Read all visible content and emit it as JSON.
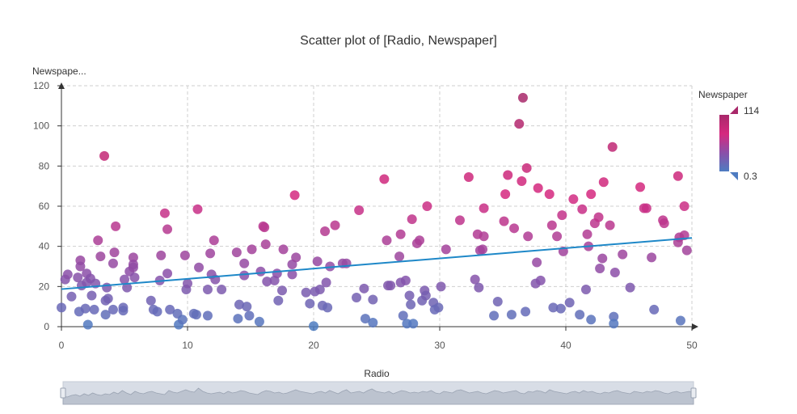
{
  "chart_data": {
    "type": "scatter",
    "title": "Scatter plot of [Radio, Newspaper]",
    "xlabel": "Radio",
    "ylabel": "Newspape...",
    "xlim": [
      0,
      50
    ],
    "ylim": [
      0,
      120
    ],
    "xticks": [
      "0",
      "10",
      "20",
      "30",
      "40",
      "50"
    ],
    "yticks": [
      "0",
      "20",
      "40",
      "60",
      "80",
      "100",
      "120"
    ],
    "grid": true,
    "color_scale": {
      "label": "Newspaper",
      "min_label": "0.3",
      "max_label": "114",
      "min": 0.3,
      "max": 114,
      "colors": [
        "#4e7cc1",
        "#8b4fa8",
        "#d6287f",
        "#a8286a"
      ]
    },
    "trendline": {
      "x": [
        0,
        50
      ],
      "y": [
        18.7,
        44.2
      ],
      "color": "#1e88c8"
    },
    "series": [
      {
        "points": [
          [
            0.0,
            9.5
          ],
          [
            0.3,
            23.5
          ],
          [
            0.5,
            26.0
          ],
          [
            0.8,
            15.0
          ],
          [
            1.3,
            24.5
          ],
          [
            1.4,
            7.5
          ],
          [
            1.5,
            33.0
          ],
          [
            1.5,
            30.0
          ],
          [
            1.6,
            20.5
          ],
          [
            1.9,
            9.0
          ],
          [
            2.0,
            22.0
          ],
          [
            2.0,
            26.5
          ],
          [
            2.1,
            1.0
          ],
          [
            2.3,
            24.0
          ],
          [
            2.4,
            15.5
          ],
          [
            2.6,
            8.5
          ],
          [
            2.7,
            21.5
          ],
          [
            2.9,
            43.0
          ],
          [
            3.1,
            35.0
          ],
          [
            3.4,
            85.0
          ],
          [
            3.5,
            13.0
          ],
          [
            3.5,
            6.0
          ],
          [
            3.6,
            19.5
          ],
          [
            3.7,
            14.0
          ],
          [
            4.1,
            31.5
          ],
          [
            4.1,
            8.5
          ],
          [
            4.2,
            37.0
          ],
          [
            4.3,
            50.0
          ],
          [
            4.9,
            9.5
          ],
          [
            4.9,
            8.0
          ],
          [
            5.0,
            23.5
          ],
          [
            5.2,
            19.5
          ],
          [
            5.4,
            27.5
          ],
          [
            5.7,
            34.5
          ],
          [
            5.7,
            31.0
          ],
          [
            5.7,
            29.5
          ],
          [
            5.8,
            24.5
          ],
          [
            7.1,
            13.0
          ],
          [
            7.3,
            8.5
          ],
          [
            7.6,
            7.5
          ],
          [
            7.8,
            23.0
          ],
          [
            7.9,
            35.5
          ],
          [
            8.2,
            56.5
          ],
          [
            8.4,
            48.5
          ],
          [
            8.4,
            26.5
          ],
          [
            8.6,
            8.5
          ],
          [
            9.2,
            6.5
          ],
          [
            9.3,
            1.0
          ],
          [
            9.6,
            3.5
          ],
          [
            9.8,
            35.5
          ],
          [
            9.9,
            18.5
          ],
          [
            10.0,
            21.5
          ],
          [
            10.5,
            6.5
          ],
          [
            10.7,
            6.0
          ],
          [
            10.8,
            58.5
          ],
          [
            10.9,
            29.5
          ],
          [
            11.6,
            18.5
          ],
          [
            11.6,
            5.5
          ],
          [
            11.8,
            36.5
          ],
          [
            11.9,
            26.0
          ],
          [
            12.1,
            43.0
          ],
          [
            12.2,
            23.5
          ],
          [
            12.7,
            18.5
          ],
          [
            13.9,
            37.0
          ],
          [
            14.0,
            4.0
          ],
          [
            14.1,
            11.0
          ],
          [
            14.5,
            31.5
          ],
          [
            14.5,
            25.5
          ],
          [
            14.7,
            10.0
          ],
          [
            14.9,
            5.5
          ],
          [
            15.1,
            38.5
          ],
          [
            15.7,
            2.5
          ],
          [
            15.8,
            27.5
          ],
          [
            16.0,
            50.0
          ],
          [
            16.1,
            49.5
          ],
          [
            16.2,
            41.0
          ],
          [
            16.3,
            22.5
          ],
          [
            16.9,
            23.0
          ],
          [
            17.1,
            26.5
          ],
          [
            17.2,
            13.0
          ],
          [
            17.5,
            18.0
          ],
          [
            17.6,
            38.5
          ],
          [
            18.3,
            31.0
          ],
          [
            18.3,
            26.0
          ],
          [
            18.5,
            65.5
          ],
          [
            18.6,
            34.5
          ],
          [
            19.4,
            17.0
          ],
          [
            19.7,
            11.5
          ],
          [
            20.0,
            0.3
          ],
          [
            20.1,
            17.5
          ],
          [
            20.3,
            32.5
          ],
          [
            20.5,
            18.5
          ],
          [
            20.7,
            10.5
          ],
          [
            20.9,
            47.5
          ],
          [
            21.0,
            22.0
          ],
          [
            21.1,
            9.5
          ],
          [
            21.3,
            30.0
          ],
          [
            21.7,
            50.5
          ],
          [
            22.3,
            31.5
          ],
          [
            22.6,
            31.5
          ],
          [
            23.4,
            14.5
          ],
          [
            23.6,
            58.0
          ],
          [
            24.0,
            19.0
          ],
          [
            24.1,
            4.0
          ],
          [
            24.7,
            13.5
          ],
          [
            24.7,
            2.0
          ],
          [
            25.6,
            73.5
          ],
          [
            25.8,
            43.0
          ],
          [
            25.9,
            20.5
          ],
          [
            26.1,
            20.5
          ],
          [
            26.8,
            35.0
          ],
          [
            26.9,
            46.0
          ],
          [
            26.9,
            22.0
          ],
          [
            27.1,
            5.5
          ],
          [
            27.3,
            23.0
          ],
          [
            27.4,
            1.5
          ],
          [
            27.6,
            15.5
          ],
          [
            27.7,
            11.0
          ],
          [
            27.8,
            53.5
          ],
          [
            27.9,
            1.5
          ],
          [
            28.2,
            41.5
          ],
          [
            28.4,
            43.0
          ],
          [
            28.6,
            13.0
          ],
          [
            28.8,
            18.0
          ],
          [
            28.9,
            15.5
          ],
          [
            29.0,
            60.0
          ],
          [
            29.5,
            12.0
          ],
          [
            29.6,
            8.5
          ],
          [
            29.9,
            9.5
          ],
          [
            30.1,
            20.0
          ],
          [
            30.5,
            38.5
          ],
          [
            31.6,
            53.0
          ],
          [
            32.3,
            74.5
          ],
          [
            32.8,
            23.5
          ],
          [
            33.0,
            46.0
          ],
          [
            33.1,
            19.5
          ],
          [
            33.2,
            38.0
          ],
          [
            33.4,
            38.5
          ],
          [
            33.5,
            59.0
          ],
          [
            33.5,
            45.0
          ],
          [
            34.3,
            5.5
          ],
          [
            34.6,
            12.5
          ],
          [
            35.1,
            52.5
          ],
          [
            35.2,
            66.0
          ],
          [
            35.4,
            75.5
          ],
          [
            35.7,
            6.0
          ],
          [
            35.9,
            49.0
          ],
          [
            36.3,
            101.0
          ],
          [
            36.5,
            72.5
          ],
          [
            36.6,
            114.0
          ],
          [
            36.8,
            7.5
          ],
          [
            36.9,
            79.0
          ],
          [
            37.0,
            45.0
          ],
          [
            37.6,
            21.5
          ],
          [
            37.7,
            32.0
          ],
          [
            37.8,
            69.0
          ],
          [
            38.0,
            23.0
          ],
          [
            38.7,
            66.0
          ],
          [
            38.9,
            50.5
          ],
          [
            39.0,
            9.5
          ],
          [
            39.3,
            45.0
          ],
          [
            39.6,
            9.0
          ],
          [
            39.7,
            55.5
          ],
          [
            39.8,
            37.5
          ],
          [
            40.3,
            12.0
          ],
          [
            40.6,
            63.5
          ],
          [
            41.1,
            6.0
          ],
          [
            41.3,
            58.5
          ],
          [
            41.6,
            18.5
          ],
          [
            41.7,
            46.0
          ],
          [
            41.8,
            40.0
          ],
          [
            42.0,
            3.5
          ],
          [
            42.0,
            66.0
          ],
          [
            42.3,
            51.5
          ],
          [
            42.6,
            54.5
          ],
          [
            42.7,
            29.0
          ],
          [
            42.9,
            34.0
          ],
          [
            43.0,
            72.0
          ],
          [
            43.5,
            50.5
          ],
          [
            43.7,
            89.5
          ],
          [
            43.8,
            5.0
          ],
          [
            43.8,
            1.5
          ],
          [
            43.9,
            27.0
          ],
          [
            44.5,
            36.0
          ],
          [
            45.1,
            19.5
          ],
          [
            45.9,
            69.5
          ],
          [
            46.2,
            59.0
          ],
          [
            46.4,
            59.0
          ],
          [
            46.8,
            34.5
          ],
          [
            47.0,
            8.5
          ],
          [
            47.7,
            53.0
          ],
          [
            47.8,
            51.5
          ],
          [
            48.9,
            75.0
          ],
          [
            48.9,
            42.0
          ],
          [
            49.0,
            44.5
          ],
          [
            49.1,
            3.0
          ],
          [
            49.4,
            60.0
          ],
          [
            49.4,
            45.5
          ],
          [
            49.6,
            38.0
          ]
        ]
      }
    ]
  },
  "zoom_slider": {
    "start": 0,
    "end": 100,
    "profile": [
      6,
      5,
      7,
      8,
      6,
      9,
      7,
      10,
      8,
      7,
      9,
      8,
      11,
      9,
      13,
      10,
      8,
      12,
      10,
      9,
      11,
      12,
      10,
      9,
      8,
      13,
      11,
      10,
      12,
      14,
      12,
      11,
      16,
      12,
      10,
      9,
      10,
      11,
      9,
      12,
      10,
      11,
      13,
      12,
      10,
      9,
      8,
      11,
      13,
      12,
      10,
      11,
      9,
      10,
      12,
      14,
      12,
      11,
      10,
      9,
      11,
      12,
      10,
      13,
      11,
      9,
      12,
      14,
      10,
      11,
      12,
      10,
      13,
      15,
      12,
      11,
      10,
      12,
      9,
      11,
      13,
      12,
      10,
      11,
      10,
      12,
      11,
      13,
      10,
      9,
      12,
      11,
      10,
      13,
      14,
      12,
      10,
      11,
      12,
      10,
      9,
      11,
      13,
      12,
      10,
      11,
      12,
      13,
      10,
      9,
      12,
      11,
      13,
      12,
      10,
      14,
      12,
      11,
      10,
      9,
      11,
      12,
      10,
      13,
      11,
      12,
      10,
      9,
      11,
      10,
      12,
      13,
      11,
      10,
      9,
      12,
      11,
      10,
      12,
      11,
      13,
      12,
      10,
      9,
      11,
      12,
      10,
      11,
      12,
      10
    ]
  }
}
